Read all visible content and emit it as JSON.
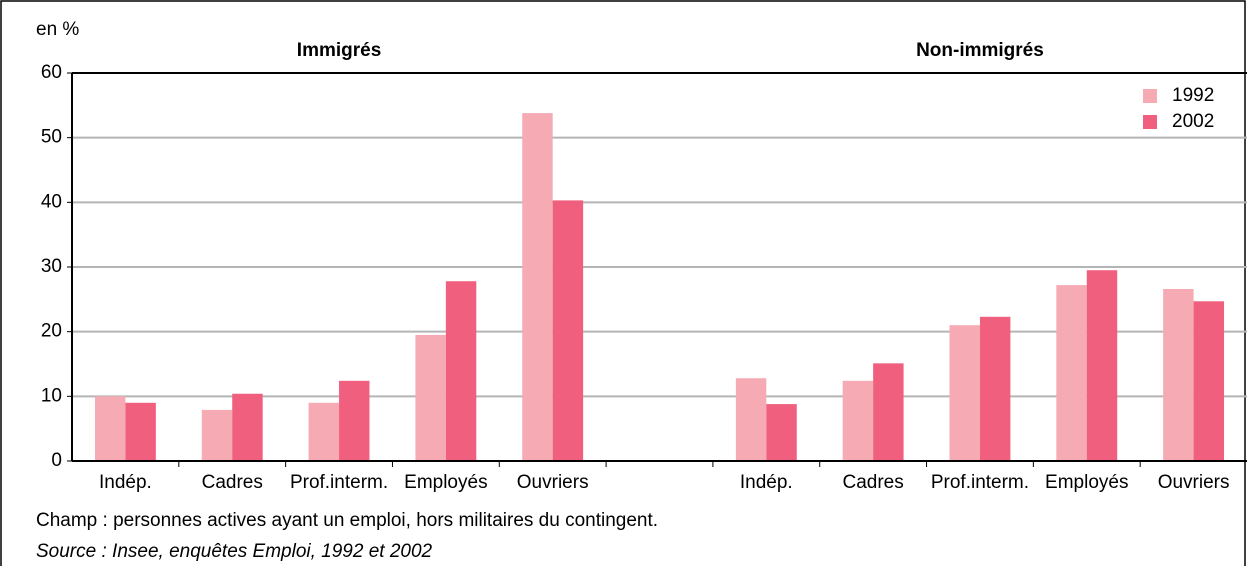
{
  "chart_data": {
    "type": "bar",
    "ylabel": "en %",
    "annotations": [
      {
        "text": "Immigrés",
        "category": 2
      },
      {
        "text": "Non-immigrés",
        "category": 8
      }
    ],
    "categories": [
      "Indép.",
      "Cadres",
      "Prof.interm.",
      "Employés",
      "Ouvriers",
      null,
      "Indép.",
      "Cadres",
      "Prof.interm.",
      "Employés",
      "Ouvriers"
    ],
    "series": [
      {
        "name": "1992",
        "color": "#f6aab4",
        "values": [
          10,
          7.9,
          9,
          19.5,
          53.8,
          null,
          12.8,
          12.4,
          21,
          27.2,
          26.6
        ]
      },
      {
        "name": "2002",
        "color": "#f0607e",
        "values": [
          9,
          10.4,
          12.4,
          27.8,
          40.3,
          null,
          8.8,
          15.1,
          22.3,
          29.5,
          24.7
        ]
      }
    ],
    "ylim": [
      0,
      60
    ],
    "yticks": [
      0,
      10,
      20,
      30,
      40,
      50,
      60
    ],
    "grid": true,
    "legend": "top-right",
    "notes": [
      "Champ : personnes actives ayant un emploi, hors militaires du contingent.",
      "Source : Insee, enquêtes Emploi, 1992 et 2002"
    ]
  }
}
